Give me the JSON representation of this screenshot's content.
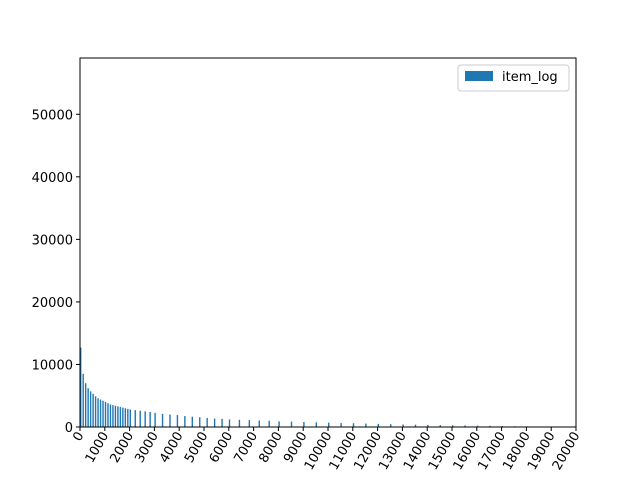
{
  "chart_data": {
    "type": "bar",
    "legend": {
      "label": "item_log",
      "placement": "top-right"
    },
    "color": "#1f77b4",
    "xlim": [
      0,
      20000
    ],
    "ylim": [
      0,
      59000
    ],
    "x_ticks": [
      "0",
      "1000",
      "2000",
      "3000",
      "4000",
      "5000",
      "6000",
      "7000",
      "8000",
      "9000",
      "10000",
      "11000",
      "12000",
      "13000",
      "14000",
      "15000",
      "16000",
      "17000",
      "18000",
      "19000",
      "20000"
    ],
    "y_ticks": [
      "0",
      "10000",
      "20000",
      "30000",
      "40000",
      "50000"
    ],
    "grid": false,
    "series": [
      {
        "name": "item_log",
        "x": [
          0,
          100,
          200,
          300,
          400,
          500,
          600,
          700,
          800,
          900,
          1000,
          1100,
          1200,
          1300,
          1400,
          1500,
          1600,
          1700,
          1800,
          1900,
          2000,
          2200,
          2400,
          2600,
          2800,
          3000,
          3300,
          3600,
          3900,
          4200,
          4500,
          4800,
          5100,
          5400,
          5700,
          6000,
          6400,
          6800,
          7200,
          7600,
          8000,
          8500,
          9000,
          9500,
          10000,
          10500,
          11000,
          11500,
          12000,
          12500,
          13000,
          13500,
          14000,
          14500,
          15000,
          15500,
          16000,
          16500,
          17000,
          17500,
          18000,
          18500,
          19000,
          19500
        ],
        "values": [
          12700,
          8500,
          7000,
          6200,
          5700,
          5300,
          4900,
          4600,
          4400,
          4200,
          4000,
          3800,
          3600,
          3500,
          3400,
          3300,
          3200,
          3100,
          3000,
          2900,
          2800,
          2700,
          2600,
          2500,
          2400,
          2250,
          2100,
          2000,
          1900,
          1750,
          1650,
          1550,
          1450,
          1350,
          1300,
          1200,
          1150,
          1100,
          1050,
          1000,
          900,
          850,
          800,
          750,
          700,
          650,
          600,
          550,
          500,
          450,
          400,
          370,
          340,
          300,
          270,
          240,
          210,
          180,
          150,
          120,
          100,
          70,
          50,
          30
        ]
      }
    ]
  }
}
